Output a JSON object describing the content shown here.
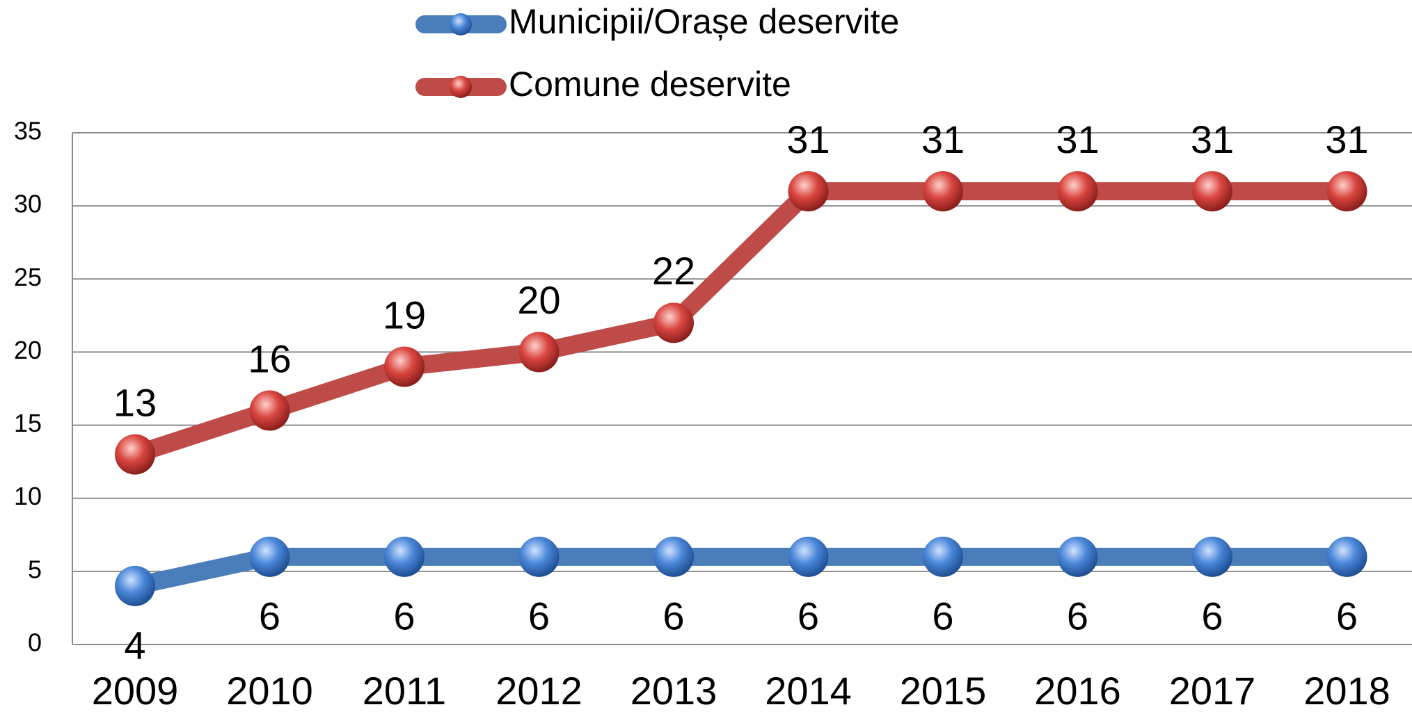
{
  "chart_data": {
    "type": "line",
    "categories": [
      "2009",
      "2010",
      "2011",
      "2012",
      "2013",
      "2014",
      "2015",
      "2016",
      "2017",
      "2018"
    ],
    "series": [
      {
        "name": "Municipii/Orașe deservite",
        "color": "#4a7ebb",
        "values": [
          4,
          6,
          6,
          6,
          6,
          6,
          6,
          6,
          6,
          6
        ]
      },
      {
        "name": "Comune deservite",
        "color": "#be4b48",
        "values": [
          13,
          16,
          19,
          20,
          22,
          31,
          31,
          31,
          31,
          31
        ]
      }
    ],
    "ylim": [
      0,
      35
    ],
    "yticks": [
      0,
      5,
      10,
      15,
      20,
      25,
      30,
      35
    ],
    "grid": true,
    "legend": "top"
  }
}
